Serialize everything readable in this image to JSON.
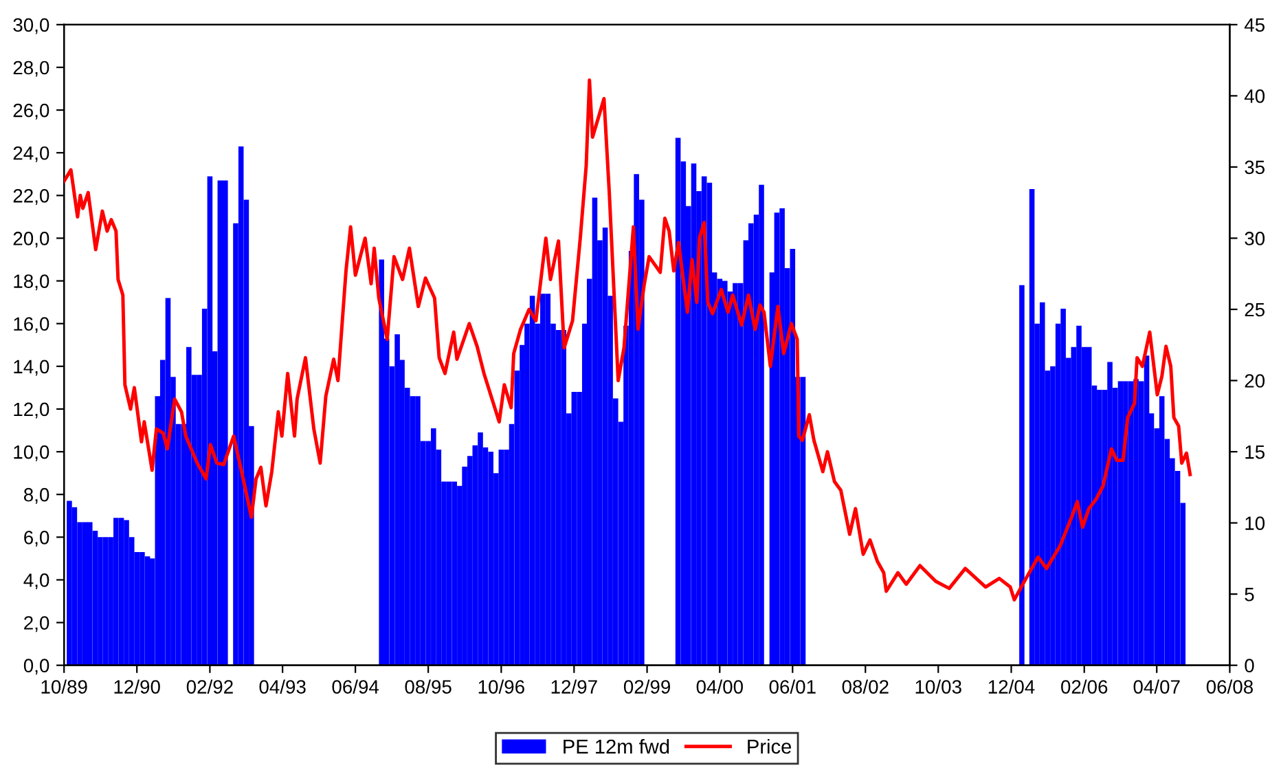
{
  "chart_data": {
    "type": "bar",
    "series": [
      {
        "name": "PE 12m fwd",
        "color": "#0000ff",
        "x": [
          "1989-11",
          "1989-12",
          "1990-01",
          "1990-02",
          "1990-03",
          "1990-04",
          "1990-05",
          "1990-06",
          "1990-07",
          "1990-08",
          "1990-09",
          "1990-10",
          "1990-11",
          "1990-12",
          "1991-01",
          "1991-02",
          "1991-03",
          "1991-04",
          "1991-05",
          "1991-06",
          "1991-07",
          "1991-08",
          "1991-09",
          "1991-10",
          "1991-11",
          "1991-12",
          "1992-01",
          "1992-02",
          "1992-03",
          "1992-04",
          "1992-05",
          "1992-07",
          "1992-08",
          "1992-09",
          "1992-10",
          "1994-11",
          "1994-12",
          "1995-01",
          "1995-02",
          "1995-03",
          "1995-04",
          "1995-05",
          "1995-06",
          "1995-07",
          "1995-08",
          "1995-09",
          "1995-10",
          "1995-11",
          "1995-12",
          "1996-01",
          "1996-02",
          "1996-03",
          "1996-04",
          "1996-05",
          "1996-06",
          "1996-07",
          "1996-08",
          "1996-09",
          "1996-10",
          "1996-11",
          "1996-12",
          "1997-01",
          "1997-02",
          "1997-03",
          "1997-04",
          "1997-05",
          "1997-06",
          "1997-07",
          "1997-08",
          "1997-09",
          "1997-10",
          "1997-11",
          "1997-12",
          "1998-01",
          "1998-02",
          "1998-03",
          "1998-04",
          "1998-05",
          "1998-06",
          "1998-07",
          "1998-08",
          "1998-09",
          "1998-10",
          "1998-11",
          "1998-12",
          "1999-01",
          "1999-08",
          "1999-09",
          "1999-10",
          "1999-11",
          "1999-12",
          "2000-01",
          "2000-02",
          "2000-03",
          "2000-04",
          "2000-05",
          "2000-06",
          "2000-07",
          "2000-08",
          "2000-09",
          "2000-10",
          "2000-11",
          "2000-12",
          "2001-02",
          "2001-03",
          "2001-04",
          "2001-05",
          "2001-06",
          "2001-07",
          "2001-08",
          "2005-02",
          "2005-04",
          "2005-05",
          "2005-06",
          "2005-07",
          "2005-08",
          "2005-09",
          "2005-10",
          "2005-11",
          "2005-12",
          "2006-01",
          "2006-02",
          "2006-03",
          "2006-04",
          "2006-05",
          "2006-06",
          "2006-07",
          "2006-08",
          "2006-09",
          "2006-10",
          "2006-11",
          "2006-12",
          "2007-01",
          "2007-02",
          "2007-03",
          "2007-04",
          "2007-05",
          "2007-06",
          "2007-07",
          "2007-08",
          "2007-09"
        ],
        "values": [
          7.7,
          7.4,
          6.7,
          6.7,
          6.7,
          6.3,
          6.0,
          6.0,
          6.0,
          6.9,
          6.9,
          6.8,
          6.0,
          5.3,
          5.3,
          5.1,
          5.0,
          12.6,
          14.3,
          17.2,
          13.5,
          11.3,
          11.3,
          14.9,
          13.6,
          13.6,
          16.7,
          22.9,
          14.7,
          22.7,
          22.7,
          20.7,
          24.3,
          21.8,
          11.2,
          19.0,
          15.3,
          14.0,
          15.5,
          14.3,
          13.0,
          12.6,
          12.6,
          10.5,
          10.5,
          11.1,
          10.1,
          8.6,
          8.6,
          8.6,
          8.4,
          9.3,
          9.8,
          10.3,
          10.9,
          10.2,
          10.0,
          9.0,
          10.1,
          10.1,
          11.3,
          13.8,
          15.0,
          16.0,
          17.3,
          16.0,
          17.4,
          17.4,
          16.0,
          15.7,
          15.7,
          11.8,
          12.8,
          12.8,
          16.0,
          18.1,
          21.9,
          19.9,
          20.5,
          17.3,
          12.5,
          11.4,
          15.9,
          19.4,
          23.0,
          21.8,
          24.7,
          23.6,
          21.5,
          23.5,
          22.2,
          22.9,
          22.6,
          18.4,
          18.1,
          18.0,
          17.5,
          17.9,
          17.9,
          19.9,
          20.7,
          21.1,
          22.5,
          18.4,
          21.2,
          21.4,
          18.6,
          19.5,
          13.5,
          13.5,
          17.8,
          22.3,
          16.0,
          17.0,
          13.8,
          14.0,
          16.0,
          16.7,
          14.4,
          14.9,
          15.9,
          14.9,
          14.9,
          13.1,
          12.9,
          12.9,
          14.2,
          13.0,
          13.3,
          13.3,
          13.3,
          13.4,
          13.3,
          14.5,
          11.8,
          11.1,
          12.6,
          10.6,
          9.7,
          9.1,
          7.6
        ]
      },
      {
        "name": "Price",
        "type": "line",
        "axis": "y2",
        "color": "#ff0000",
        "x": [
          "1989-10-01",
          "1989-11-10",
          "1989-12-19",
          "1990-01-04",
          "1990-01-19",
          "1990-02-19",
          "1990-04-04",
          "1990-05-13",
          "1990-06-10",
          "1990-07-04",
          "1990-08-01",
          "1990-08-13",
          "1990-09-10",
          "1990-09-22",
          "1990-10-25",
          "1990-11-16",
          "1990-12-28",
          "1991-01-13",
          "1991-02-28",
          "1991-03-25",
          "1991-05-04",
          "1991-05-28",
          "1991-07-10",
          "1991-08-19",
          "1991-09-13",
          "1991-11-19",
          "1992-01-10",
          "1992-02-04",
          "1992-03-13",
          "1992-04-22",
          "1992-06-19",
          "1992-08-10",
          "1992-10-01",
          "1992-10-28",
          "1992-11-25",
          "1992-12-25",
          "1993-01-28",
          "1993-03-07",
          "1993-03-28",
          "1993-05-01",
          "1993-06-10",
          "1993-06-25",
          "1993-08-13",
          "1993-10-01",
          "1993-11-07",
          "1993-12-10",
          "1994-01-25",
          "1994-02-19",
          "1994-04-07",
          "1994-05-04",
          "1994-06-01",
          "1994-07-28",
          "1994-09-01",
          "1994-09-19",
          "1994-10-16",
          "1994-12-04",
          "1995-01-13",
          "1995-03-04",
          "1995-04-13",
          "1995-06-04",
          "1995-07-16",
          "1995-09-07",
          "1995-10-04",
          "1995-11-07",
          "1995-12-28",
          "1996-01-16",
          "1996-03-28",
          "1996-05-13",
          "1996-06-22",
          "1996-09-19",
          "1996-10-19",
          "1996-11-28",
          "1996-12-13",
          "1997-01-22",
          "1997-03-13",
          "1997-04-22",
          "1997-06-19",
          "1997-07-16",
          "1997-09-01",
          "1997-10-04",
          "1997-11-22",
          "1998-01-07",
          "1998-02-10",
          "1998-03-01",
          "1998-03-19",
          "1998-04-28",
          "1998-05-25",
          "1998-06-25",
          "1998-08-16",
          "1998-09-19",
          "1998-11-13",
          "1998-12-10",
          "1999-01-16",
          "1999-02-13",
          "1999-04-19",
          "1999-05-16",
          "1999-06-10",
          "1999-07-07",
          "1999-08-04",
          "1999-09-25",
          "1999-10-22",
          "1999-11-19",
          "1999-12-04",
          "2000-01-01",
          "2000-01-22",
          "2000-02-19",
          "2000-04-10",
          "2000-05-19",
          "2000-06-16",
          "2000-08-07",
          "2000-09-16",
          "2000-10-25",
          "2000-11-22",
          "2000-12-16",
          "2001-01-22",
          "2001-03-07",
          "2001-04-10",
          "2001-05-25",
          "2001-06-28",
          "2001-07-07",
          "2001-07-28",
          "2001-09-07",
          "2001-10-04",
          "2001-11-25",
          "2001-12-22",
          "2002-02-01",
          "2002-03-10",
          "2002-05-01",
          "2002-06-04",
          "2002-07-19",
          "2002-08-28",
          "2002-10-10",
          "2002-11-16",
          "2002-12-01",
          "2003-02-07",
          "2003-03-28",
          "2003-06-16",
          "2003-09-16",
          "2003-12-04",
          "2004-03-07",
          "2004-07-04",
          "2004-09-22",
          "2004-11-25",
          "2004-12-19",
          "2005-02-16",
          "2005-05-07",
          "2005-06-25",
          "2005-09-13",
          "2005-11-19",
          "2005-12-22",
          "2006-01-22",
          "2006-02-28",
          "2006-04-13",
          "2006-05-22",
          "2006-07-10",
          "2006-08-10",
          "2006-09-16",
          "2006-10-13",
          "2006-11-22",
          "2006-12-07",
          "2007-01-07",
          "2007-02-19",
          "2007-04-04",
          "2007-05-01",
          "2007-05-25",
          "2007-06-22",
          "2007-07-10",
          "2007-08-07",
          "2007-08-25",
          "2007-09-22",
          "2007-10-13"
        ],
        "values": [
          34.0,
          34.8,
          31.5,
          33.0,
          32.1,
          33.2,
          29.2,
          31.9,
          30.5,
          31.3,
          30.5,
          27.1,
          26.0,
          19.7,
          18.0,
          19.5,
          15.7,
          17.1,
          13.7,
          16.6,
          16.3,
          15.2,
          18.7,
          17.8,
          16.1,
          14.2,
          13.1,
          15.5,
          14.2,
          14.1,
          16.1,
          13.3,
          10.4,
          13.1,
          13.9,
          11.2,
          13.6,
          17.8,
          16.1,
          20.5,
          16.1,
          18.7,
          21.6,
          16.6,
          14.2,
          18.9,
          21.5,
          20.0,
          27.7,
          30.8,
          27.4,
          30.0,
          26.8,
          29.3,
          25.8,
          22.9,
          28.7,
          27.1,
          29.3,
          25.2,
          27.2,
          25.8,
          21.6,
          20.5,
          23.4,
          21.5,
          24.0,
          22.4,
          20.5,
          17.1,
          19.7,
          18.1,
          21.9,
          23.6,
          25.0,
          24.2,
          30.0,
          27.1,
          29.8,
          22.3,
          24.2,
          30.1,
          35.1,
          41.1,
          37.1,
          38.7,
          39.8,
          33.2,
          20.0,
          22.3,
          30.8,
          23.6,
          26.8,
          28.7,
          27.6,
          31.4,
          30.5,
          27.7,
          29.7,
          24.8,
          28.5,
          25.5,
          30.0,
          31.1,
          25.5,
          24.7,
          26.4,
          24.8,
          26.0,
          23.9,
          26.0,
          23.6,
          25.3,
          24.8,
          21.0,
          25.2,
          21.9,
          24.0,
          22.9,
          16.1,
          15.8,
          17.6,
          15.8,
          13.6,
          15.0,
          12.9,
          12.3,
          9.2,
          11.0,
          7.8,
          8.8,
          7.3,
          6.5,
          5.2,
          6.5,
          5.7,
          7.0,
          5.9,
          5.4,
          6.8,
          5.5,
          6.1,
          5.5,
          4.6,
          5.9,
          7.6,
          6.8,
          8.4,
          10.4,
          11.5,
          9.7,
          11.0,
          11.7,
          12.6,
          15.2,
          14.4,
          14.4,
          17.4,
          18.4,
          21.6,
          21.0,
          23.4,
          19.0,
          20.3,
          22.4,
          21.0,
          17.4,
          16.8,
          14.2,
          14.9,
          13.4
        ]
      }
    ],
    "xlim": [
      "1989-10",
      "2008-06"
    ],
    "xticks": [
      {
        "value": "1989-10",
        "label": "10/89"
      },
      {
        "value": "1990-12",
        "label": "12/90"
      },
      {
        "value": "1992-02",
        "label": "02/92"
      },
      {
        "value": "1993-04",
        "label": "04/93"
      },
      {
        "value": "1994-06",
        "label": "06/94"
      },
      {
        "value": "1995-08",
        "label": "08/95"
      },
      {
        "value": "1996-10",
        "label": "10/96"
      },
      {
        "value": "1997-12",
        "label": "12/97"
      },
      {
        "value": "1999-02",
        "label": "02/99"
      },
      {
        "value": "2000-04",
        "label": "04/00"
      },
      {
        "value": "2001-06",
        "label": "06/01"
      },
      {
        "value": "2002-08",
        "label": "08/02"
      },
      {
        "value": "2003-10",
        "label": "10/03"
      },
      {
        "value": "2004-12",
        "label": "12/04"
      },
      {
        "value": "2006-02",
        "label": "02/06"
      },
      {
        "value": "2007-04",
        "label": "04/07"
      },
      {
        "value": "2008-06",
        "label": "06/08"
      }
    ],
    "ylim": [
      0,
      30
    ],
    "yticks": [
      {
        "value": 0,
        "label": "0,0"
      },
      {
        "value": 2,
        "label": "2,0"
      },
      {
        "value": 4,
        "label": "4,0"
      },
      {
        "value": 6,
        "label": "6,0"
      },
      {
        "value": 8,
        "label": "8,0"
      },
      {
        "value": 10,
        "label": "10,0"
      },
      {
        "value": 12,
        "label": "12,0"
      },
      {
        "value": 14,
        "label": "14,0"
      },
      {
        "value": 16,
        "label": "16,0"
      },
      {
        "value": 18,
        "label": "18,0"
      },
      {
        "value": 20,
        "label": "20,0"
      },
      {
        "value": 22,
        "label": "22,0"
      },
      {
        "value": 24,
        "label": "24,0"
      },
      {
        "value": 26,
        "label": "26,0"
      },
      {
        "value": 28,
        "label": "28,0"
      },
      {
        "value": 30,
        "label": "30,0"
      }
    ],
    "y2lim": [
      0,
      45
    ],
    "y2ticks": [
      0,
      5,
      10,
      15,
      20,
      25,
      30,
      35,
      40,
      45
    ],
    "grid": false,
    "legend": "bottom",
    "line_style": "solid",
    "marker": "none"
  }
}
